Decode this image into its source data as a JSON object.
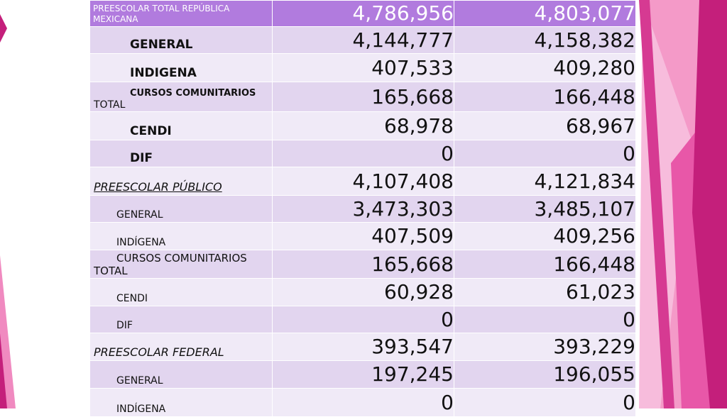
{
  "colors": {
    "header_bg": "#b17bde",
    "row_dark": "#e2d5ef",
    "row_light": "#f0eaf7",
    "accent_magenta": "#c4237f",
    "accent_pink": "#f2a6cd"
  },
  "table": {
    "header": {
      "label": "PREESCOLAR TOTAL REPÚBLICA MEXICANA",
      "v1": "4,786,956",
      "v2": "4,803,077"
    },
    "rows": [
      {
        "label": "GENERAL",
        "v1": "4,144,777",
        "v2": "4,158,382"
      },
      {
        "label": "INDIGENA",
        "v1": "407,533",
        "v2": "409,280"
      },
      {
        "label_line1": "CURSOS COMUNITARIOS",
        "label_line2": "TOTAL",
        "v1": "165,668",
        "v2": "166,448"
      },
      {
        "label": "CENDI",
        "v1": "68,978",
        "v2": "68,967"
      },
      {
        "label": "DIF",
        "v1": "0",
        "v2": "0"
      },
      {
        "label": "PREESCOLAR PÚBLICO",
        "v1": "4,107,408",
        "v2": "4,121,834"
      },
      {
        "label": "GENERAL",
        "v1": "3,473,303",
        "v2": "3,485,107"
      },
      {
        "label": "INDÍGENA",
        "v1": "407,509",
        "v2": "409,256"
      },
      {
        "label_line1": "CURSOS COMUNITARIOS",
        "label_line2": "TOTAL",
        "v1": "165,668",
        "v2": "166,448"
      },
      {
        "label": "CENDI",
        "v1": "60,928",
        "v2": "61,023"
      },
      {
        "label": "DIF",
        "v1": "0",
        "v2": "0"
      },
      {
        "label": "PREESCOLAR FEDERAL",
        "v1": "393,547",
        "v2": "393,229"
      },
      {
        "label": "GENERAL",
        "v1": "197,245",
        "v2": "196,055"
      },
      {
        "label": "INDÍGENA",
        "v1": "0",
        "v2": "0"
      }
    ]
  }
}
